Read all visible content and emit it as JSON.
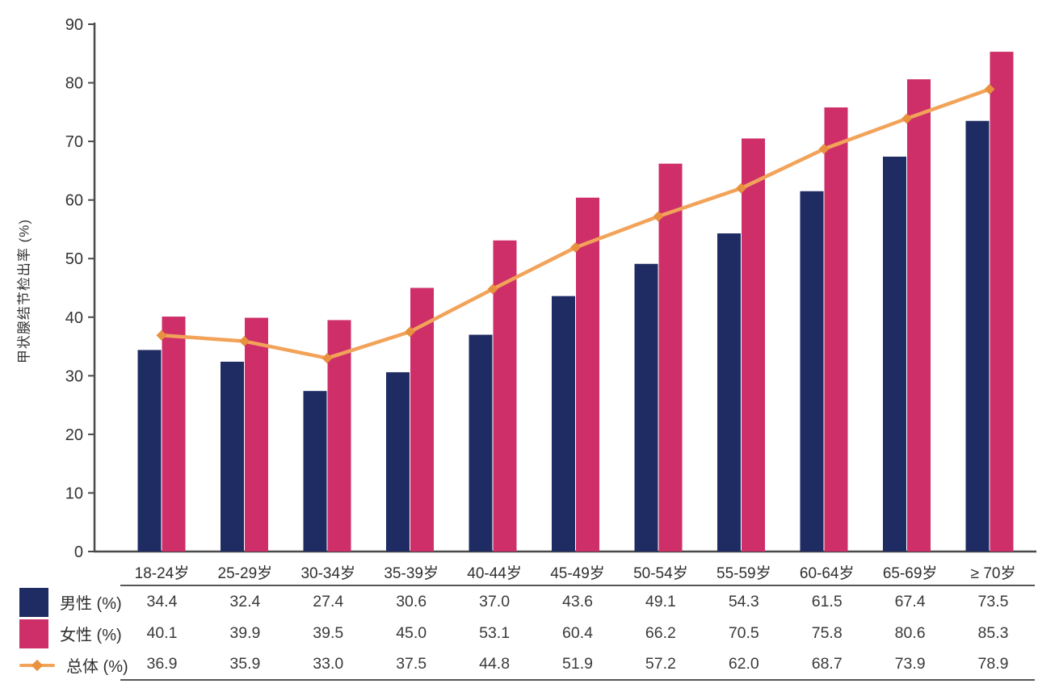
{
  "chart_data": {
    "type": "bar",
    "title": "",
    "ylabel": "甲状腺结节检出率 (%)",
    "ylim": [
      0,
      90
    ],
    "yticks": [
      0,
      10,
      20,
      30,
      40,
      50,
      60,
      70,
      80,
      90
    ],
    "grid": false,
    "legend_position": "bottom-left",
    "categories": [
      "18-24岁",
      "25-29岁",
      "30-34岁",
      "35-39岁",
      "40-44岁",
      "45-49岁",
      "50-54岁",
      "55-59岁",
      "60-64岁",
      "65-69岁",
      "≥ 70岁"
    ],
    "series": [
      {
        "name": "男性 (%)",
        "type": "bar",
        "color": "#1F2B63",
        "values": [
          34.4,
          32.4,
          27.4,
          30.6,
          37.0,
          43.6,
          49.1,
          54.3,
          61.5,
          67.4,
          73.5
        ]
      },
      {
        "name": "女性 (%)",
        "type": "bar",
        "color": "#CE2F68",
        "values": [
          40.1,
          39.9,
          39.5,
          45.0,
          53.1,
          60.4,
          66.2,
          70.5,
          75.8,
          80.6,
          85.3
        ]
      },
      {
        "name": "总体 (%)",
        "type": "line",
        "color": "#F2A359",
        "marker_color": "#E8913F",
        "values": [
          36.9,
          35.9,
          33.0,
          37.5,
          44.8,
          51.9,
          57.2,
          62.0,
          68.7,
          73.9,
          78.9
        ]
      }
    ]
  },
  "colors": {
    "axis": "#4a4a4a",
    "tick_text": "#333333",
    "background": "#ffffff"
  }
}
